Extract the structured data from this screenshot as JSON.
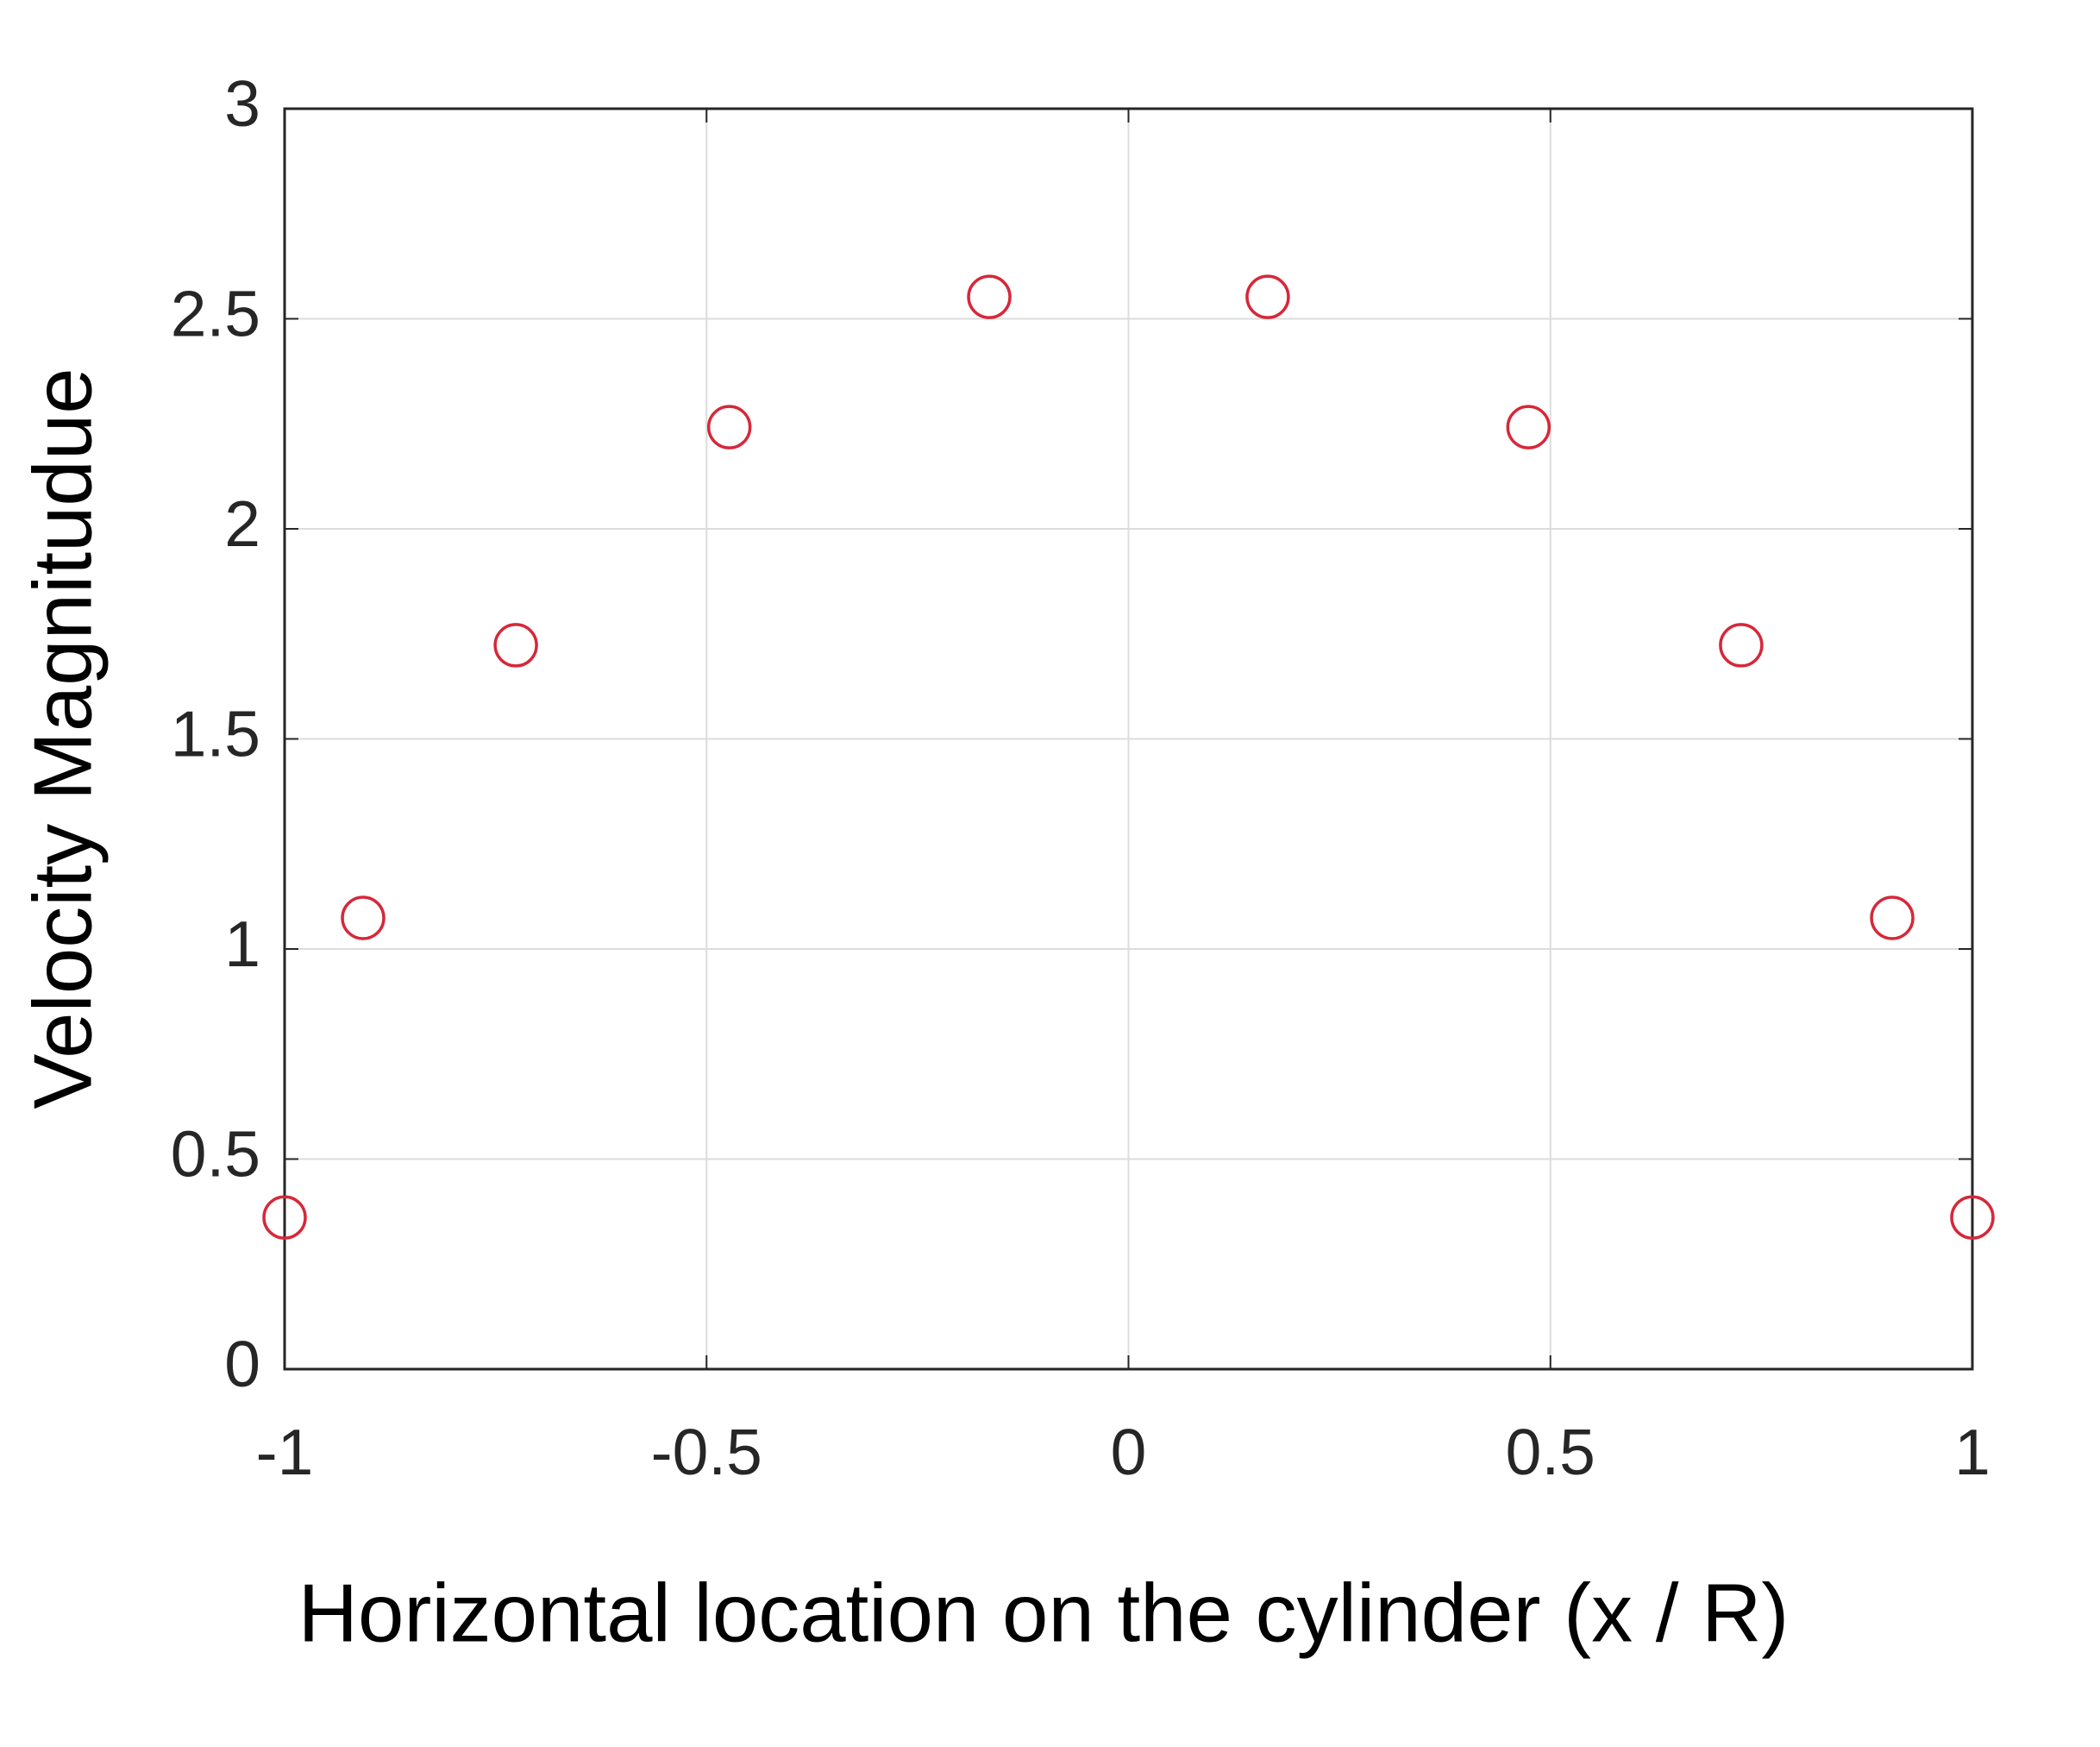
{
  "chart_data": {
    "type": "scatter",
    "xlabel": "Horizontal location on the cylinder (x / R)",
    "ylabel": "Velocity Magnitudue",
    "series": [
      {
        "color": "#d62839",
        "x": [
          -1,
          -0.907,
          -0.726,
          -0.473,
          -0.165,
          0.165,
          0.474,
          0.726,
          0.905,
          1
        ],
        "values": [
          0.361,
          1.074,
          1.723,
          2.242,
          2.552,
          2.552,
          2.242,
          1.723,
          1.074,
          0.361
        ]
      }
    ],
    "xlim": [
      -1,
      1
    ],
    "xticks": [
      -1,
      -0.5,
      0,
      0.5,
      1
    ],
    "ylim": [
      0,
      3
    ],
    "yticks": [
      0,
      0.5,
      1,
      1.5,
      2,
      2.5,
      3
    ],
    "grid": true
  }
}
